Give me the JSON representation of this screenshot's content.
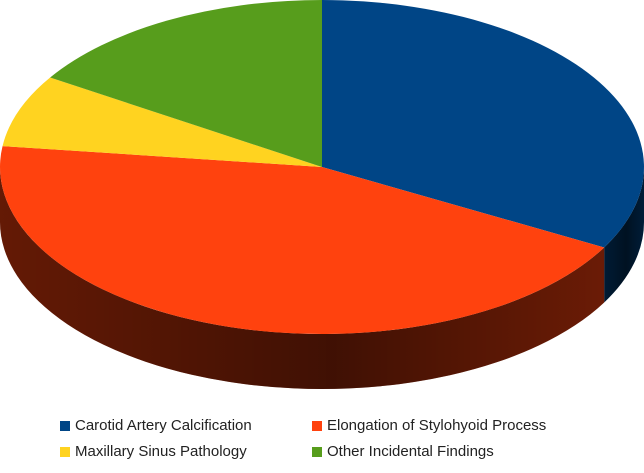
{
  "chart_data": {
    "type": "pie",
    "style": "3d",
    "title": "",
    "legend_position": "bottom",
    "series": [
      {
        "name": "Carotid Artery Calcification",
        "value": 33,
        "color": "#004586"
      },
      {
        "name": "Elongation of Stylohyoid Process",
        "value": 44,
        "color": "#ff420e"
      },
      {
        "name": "Maxillary Sinus Pathology",
        "value": 7,
        "color": "#ffd320"
      },
      {
        "name": "Other Incidental Findings",
        "value": 16,
        "color": "#579d1c"
      }
    ]
  }
}
